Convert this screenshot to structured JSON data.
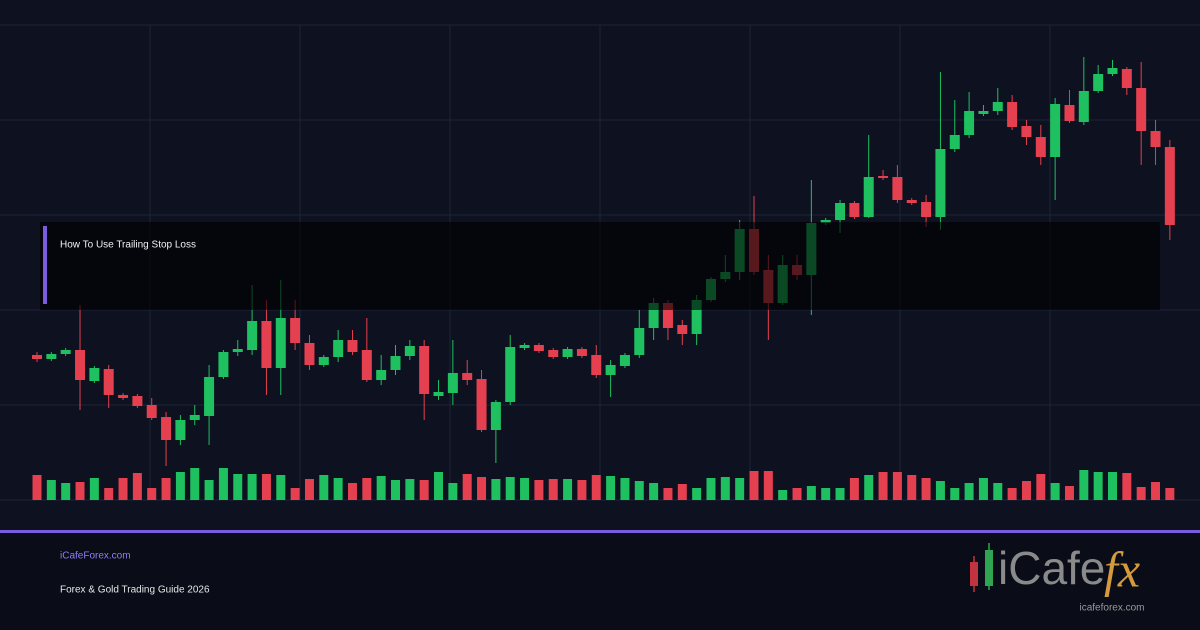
{
  "chart_data": {
    "type": "candlestick",
    "ylim": [
      0,
      500
    ],
    "vlim": [
      0,
      100
    ],
    "up_color": "#1fc060",
    "down_color": "#e5404f",
    "ohlc": [
      [
        145,
        148,
        138,
        141
      ],
      [
        141,
        148,
        139,
        146
      ],
      [
        146,
        152,
        144,
        150
      ],
      [
        150,
        195,
        90,
        120
      ],
      [
        119,
        134,
        117,
        132
      ],
      [
        131,
        135,
        92,
        105
      ],
      [
        105,
        107,
        100,
        102
      ],
      [
        104,
        106,
        92,
        94
      ],
      [
        95,
        102,
        80,
        82
      ],
      [
        83,
        88,
        34,
        60
      ],
      [
        60,
        85,
        55,
        80
      ],
      [
        80,
        95,
        75,
        85
      ],
      [
        84,
        135,
        55,
        123
      ],
      [
        123,
        150,
        121,
        148
      ],
      [
        148,
        160,
        144,
        151
      ],
      [
        150,
        215,
        145,
        179
      ],
      [
        179,
        200,
        105,
        132
      ],
      [
        132,
        220,
        105,
        182
      ],
      [
        182,
        200,
        150,
        157
      ],
      [
        157,
        165,
        130,
        135
      ],
      [
        135,
        145,
        133,
        143
      ],
      [
        143,
        170,
        138,
        160
      ],
      [
        160,
        170,
        145,
        148
      ],
      [
        150,
        182,
        118,
        120
      ],
      [
        120,
        145,
        115,
        130
      ],
      [
        130,
        155,
        125,
        144
      ],
      [
        144,
        160,
        140,
        154
      ],
      [
        154,
        160,
        80,
        106
      ],
      [
        104,
        120,
        100,
        108
      ],
      [
        107,
        160,
        95,
        127
      ],
      [
        127,
        140,
        115,
        120
      ],
      [
        121,
        130,
        68,
        70
      ],
      [
        70,
        100,
        37,
        98
      ],
      [
        98,
        165,
        95,
        153
      ],
      [
        152,
        157,
        150,
        155
      ],
      [
        155,
        157,
        147,
        149
      ],
      [
        150,
        152,
        141,
        143
      ],
      [
        143,
        153,
        141,
        151
      ],
      [
        151,
        153,
        142,
        144
      ],
      [
        145,
        155,
        122,
        125
      ],
      [
        125,
        140,
        103,
        135
      ],
      [
        134,
        147,
        132,
        145
      ],
      [
        145,
        190,
        142,
        172
      ],
      [
        172,
        202,
        160,
        197
      ],
      [
        197,
        200,
        160,
        172
      ],
      [
        175,
        180,
        155,
        166
      ],
      [
        166,
        205,
        155,
        200
      ],
      [
        200,
        223,
        198,
        221
      ],
      [
        221,
        245,
        218,
        228
      ],
      [
        228,
        280,
        220,
        271
      ],
      [
        271,
        304,
        225,
        228
      ],
      [
        230,
        245,
        160,
        197
      ],
      [
        197,
        245,
        195,
        235
      ],
      [
        235,
        245,
        220,
        225
      ],
      [
        225,
        320,
        185,
        277
      ],
      [
        277,
        282,
        275,
        280
      ],
      [
        280,
        300,
        267,
        297
      ],
      [
        297,
        299,
        281,
        283
      ],
      [
        283,
        365,
        282,
        323
      ],
      [
        324,
        330,
        320,
        322
      ],
      [
        323,
        335,
        297,
        300
      ],
      [
        300,
        302,
        295,
        297
      ],
      [
        298,
        305,
        273,
        283
      ],
      [
        283,
        428,
        270,
        351
      ],
      [
        351,
        400,
        348,
        365
      ],
      [
        365,
        408,
        362,
        389
      ],
      [
        386,
        395,
        384,
        389
      ],
      [
        389,
        412,
        385,
        398
      ],
      [
        398,
        405,
        370,
        373
      ],
      [
        374,
        380,
        355,
        363
      ],
      [
        363,
        375,
        335,
        343
      ],
      [
        343,
        402,
        300,
        396
      ],
      [
        395,
        410,
        377,
        379
      ],
      [
        378,
        443,
        375,
        409
      ],
      [
        409,
        435,
        407,
        426
      ],
      [
        426,
        440,
        424,
        432
      ],
      [
        431,
        433,
        405,
        412
      ],
      [
        412,
        438,
        335,
        369
      ],
      [
        369,
        380,
        335,
        353
      ],
      [
        353,
        360,
        260,
        275
      ]
    ],
    "volume": [
      25,
      20,
      17,
      18,
      22,
      12,
      22,
      27,
      12,
      22,
      28,
      32,
      20,
      32,
      26,
      26,
      26,
      25,
      12,
      21,
      25,
      22,
      17,
      22,
      24,
      20,
      21,
      20,
      28,
      17,
      26,
      23,
      21,
      23,
      22,
      20,
      21,
      21,
      20,
      25,
      24,
      22,
      19,
      17,
      12,
      16,
      12,
      22,
      23,
      22,
      29,
      29,
      10,
      12,
      14,
      12,
      12,
      22,
      25,
      28,
      28,
      25,
      22,
      19,
      12,
      17,
      22,
      17,
      12,
      19,
      26,
      17,
      14,
      30,
      28,
      28,
      27,
      13,
      18,
      12
    ]
  },
  "overlay": {
    "title": "How To Use Trailing Stop Loss"
  },
  "footer": {
    "site": "iCafeForex.com",
    "subtitle": "Forex & Gold Trading Guide 2026"
  },
  "logo": {
    "word": "iCafe",
    "accent": "fx",
    "url": "icafeforex.com"
  }
}
